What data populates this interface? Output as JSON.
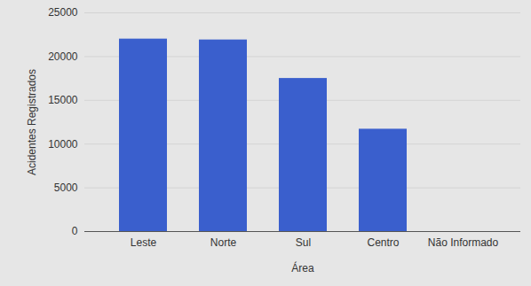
{
  "chart_data": {
    "type": "bar",
    "categories": [
      "Leste",
      "Norte",
      "Sul",
      "Centro",
      "Não Informado"
    ],
    "values": [
      22000,
      21900,
      17500,
      11700,
      0
    ],
    "color": "#3a5fcd",
    "x_label": "Área",
    "y_label": "Acidentes Registrados",
    "ylim": [
      0,
      25000
    ],
    "yticks": [
      0,
      5000,
      10000,
      15000,
      20000,
      25000
    ],
    "grid": true
  }
}
